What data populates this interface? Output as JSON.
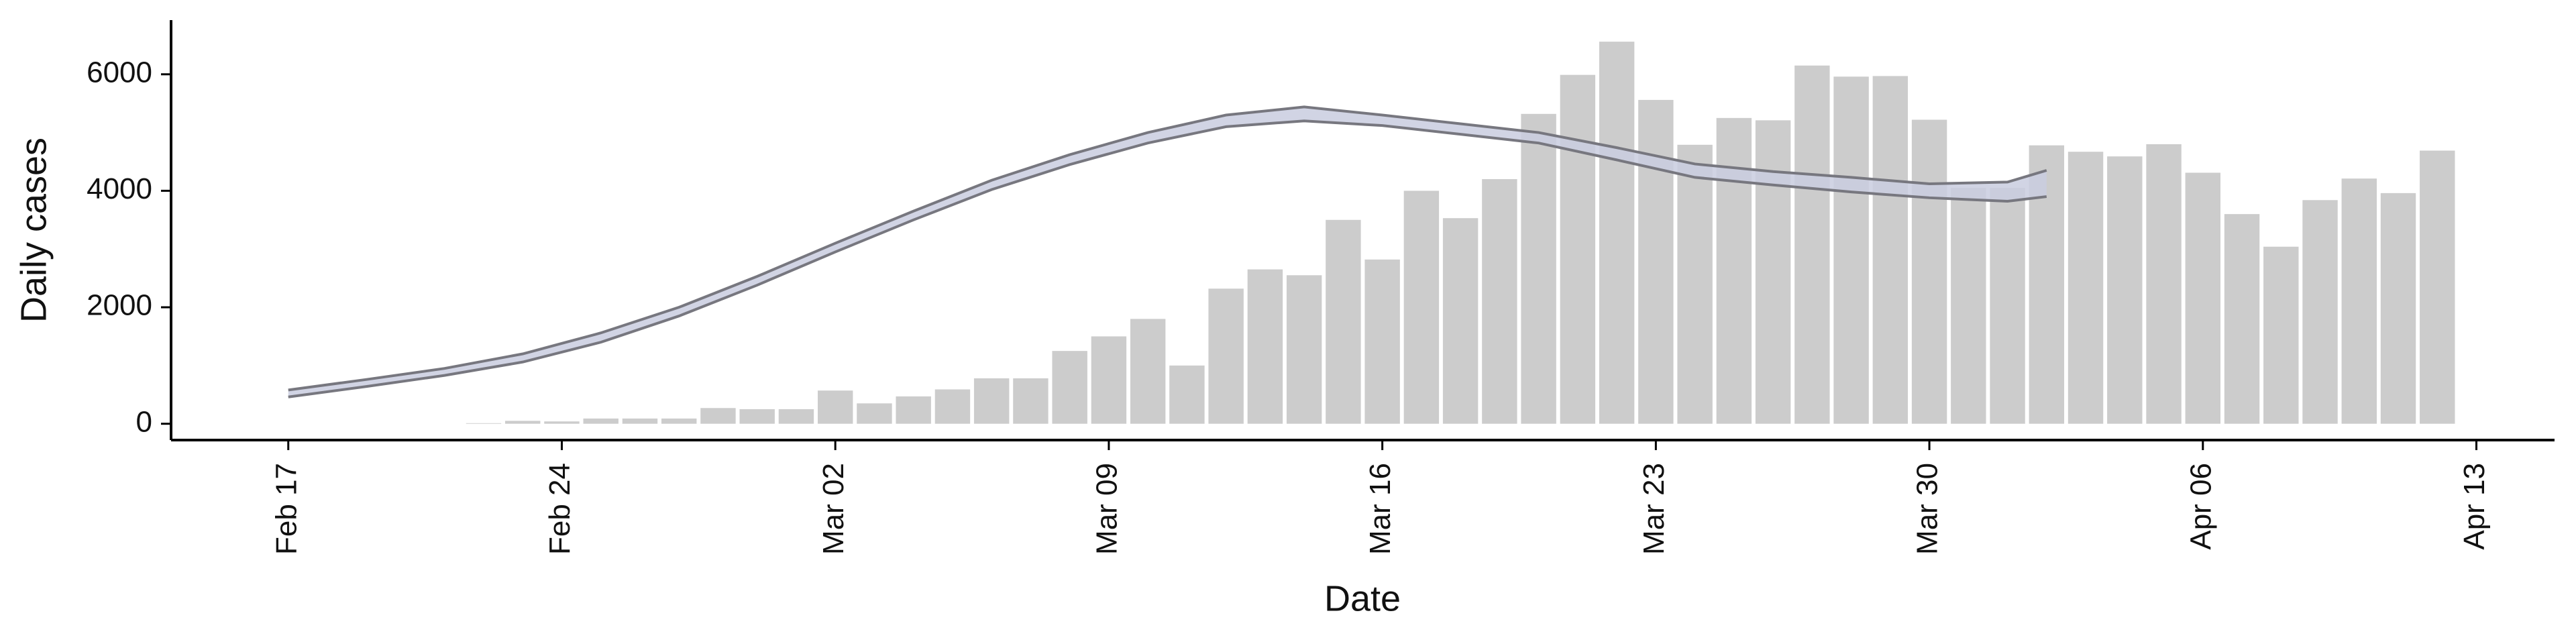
{
  "chart_data": {
    "type": "bar",
    "xlabel": "Date",
    "ylabel": "Daily cases",
    "color": "#cccccc",
    "x": [
      "Feb 22",
      "Feb 23",
      "Feb 24",
      "Feb 25",
      "Feb 26",
      "Feb 27",
      "Feb 28",
      "Feb 29",
      "Mar 1",
      "Mar 2",
      "Mar 3",
      "Mar 4",
      "Mar 5",
      "Mar 6",
      "Mar 7",
      "Mar 8",
      "Mar 9",
      "Mar 10",
      "Mar 11",
      "Mar 12",
      "Mar 13",
      "Mar 14",
      "Mar 15",
      "Mar 16",
      "Mar 17",
      "Mar 18",
      "Mar 19",
      "Mar 20",
      "Mar 21",
      "Mar 22",
      "Mar 23",
      "Mar 24",
      "Mar 25",
      "Mar 26",
      "Mar 27",
      "Mar 28",
      "Mar 29",
      "Mar 30",
      "Mar 31",
      "Apr 1",
      "Apr 2",
      "Apr 3",
      "Apr 4",
      "Apr 5",
      "Apr 6",
      "Apr 7",
      "Apr 8",
      "Apr 9",
      "Apr 10",
      "Apr 11",
      "Apr 12"
    ],
    "values": [
      10,
      50,
      40,
      90,
      90,
      90,
      270,
      250,
      250,
      570,
      350,
      470,
      590,
      780,
      780,
      1250,
      1500,
      1800,
      1000,
      2320,
      2650,
      2550,
      3500,
      2820,
      4000,
      3530,
      4200,
      5320,
      5990,
      6560,
      5560,
      4790,
      5250,
      5210,
      6150,
      5960,
      5970,
      5220,
      4050,
      4050,
      4780,
      4670,
      4590,
      4800,
      4310,
      3600,
      3040,
      3840,
      4210,
      3960,
      4690
    ],
    "overlay": {
      "type": "line",
      "band_color": "#c9ccdf",
      "x": [
        "Feb 17",
        "Feb 19",
        "Feb 21",
        "Feb 23",
        "Feb 25",
        "Feb 27",
        "Feb 29",
        "Mar 2",
        "Mar 4",
        "Mar 6",
        "Mar 8",
        "Mar 10",
        "Mar 12",
        "Mar 14",
        "Mar 16",
        "Mar 18",
        "Mar 20",
        "Mar 22",
        "Mar 24",
        "Mar 26",
        "Mar 28",
        "Mar 30",
        "Apr 1",
        "Apr 2"
      ],
      "series": [
        {
          "color": "#77777f",
          "values": [
            580,
            760,
            950,
            1200,
            1560,
            2000,
            2530,
            3100,
            3650,
            4180,
            4620,
            5000,
            5300,
            5440,
            5300,
            5150,
            5000,
            4740,
            4460,
            4330,
            4230,
            4120,
            4150,
            4350
          ]
        },
        {
          "color": "#77777f",
          "values": [
            460,
            640,
            830,
            1060,
            1400,
            1850,
            2380,
            2950,
            3500,
            4020,
            4450,
            4820,
            5100,
            5200,
            5120,
            4970,
            4820,
            4530,
            4230,
            4100,
            3980,
            3880,
            3820,
            3900
          ]
        }
      ]
    },
    "xlim": [
      "Feb 14",
      "Apr 15"
    ],
    "xticks": [
      "Feb 17",
      "Feb 24",
      "Mar 02",
      "Mar 09",
      "Mar 16",
      "Mar 23",
      "Mar 30",
      "Apr 06",
      "Apr 13"
    ],
    "ylim": [
      -280,
      6930
    ],
    "yticks": [
      0,
      2000,
      4000,
      6000
    ]
  }
}
